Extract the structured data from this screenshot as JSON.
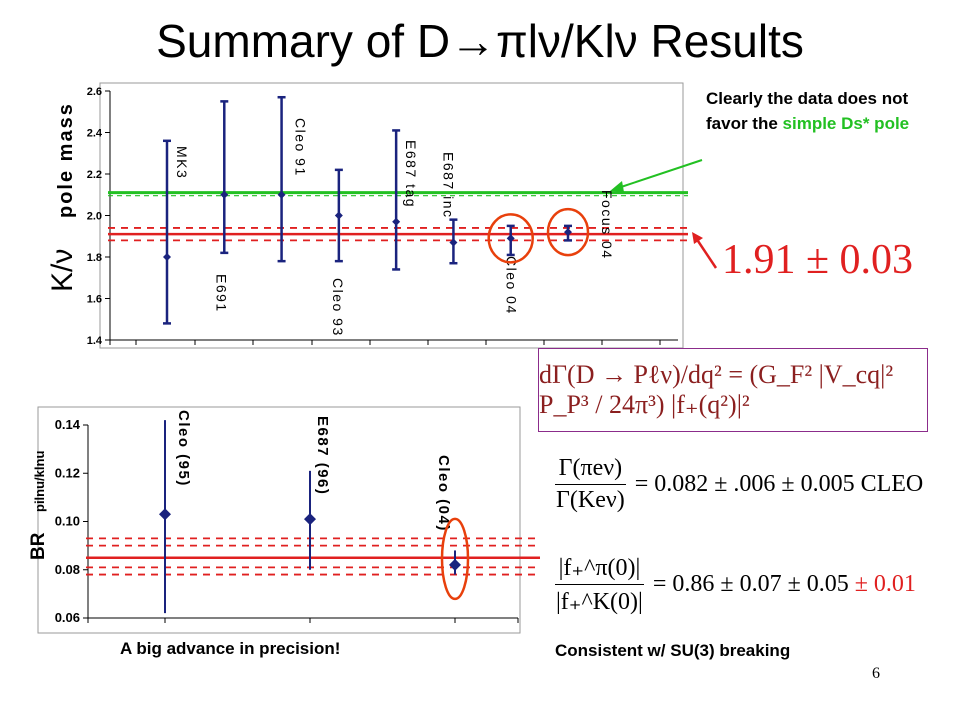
{
  "slide": {
    "title": "Summary of D→πlν/Klν Results",
    "note_prefix": "Clearly the data does not favor the",
    "note_green": "simple Ds* pole",
    "pole_value": "1.91 ± 0.03",
    "formula_text": "dΓ(D → Pℓν)/dq² = (G_F² |V_cq|² P_P³ / 24π³) |f₊(q²)|²",
    "eq1_num": "Γ(πeν)",
    "eq1_den": "Γ(Keν)",
    "eq1_rhs": "= 0.082 ± .006 ± 0.005 CLEO",
    "eq2_num": "|f₊^π(0)|",
    "eq2_den": "|f₊^K(0)|",
    "eq2_rhs": "= 0.86 ± 0.07 ± 0.05",
    "eq2_red": "± 0.01",
    "bottom_left_caption": "A big advance in precision!",
    "bottom_right_caption": "Consistent w/ SU(3) breaking",
    "page_number": "6",
    "colors": {
      "accent_red": "#e02020",
      "accent_green": "#22c022",
      "series_blue": "#1a237e"
    }
  },
  "chart_data": [
    {
      "type": "scatter",
      "ylabel_main": "K/ν",
      "ylabel_sub": "pole mass",
      "ylim": [
        1.4,
        2.6
      ],
      "yticks": [
        "1.4",
        "1.6",
        "1.8",
        "2.0",
        "2.2",
        "2.4",
        "2.6"
      ],
      "points": [
        {
          "label": "MK3",
          "y": 1.8,
          "lo": 1.48,
          "hi": 2.36
        },
        {
          "label": "E691",
          "y": 2.1,
          "lo": 1.82,
          "hi": 2.55
        },
        {
          "label": "Cleo 91",
          "y": 2.1,
          "lo": 1.78,
          "hi": 2.57
        },
        {
          "label": "Cleo 93",
          "y": 2.0,
          "lo": 1.78,
          "hi": 2.22
        },
        {
          "label": "E687 tag",
          "y": 1.97,
          "lo": 1.74,
          "hi": 2.41
        },
        {
          "label": "E687 inc",
          "y": 1.87,
          "lo": 1.77,
          "hi": 1.98
        },
        {
          "label": "Cleo 04",
          "y": 1.89,
          "lo": 1.81,
          "hi": 1.95
        },
        {
          "label": "Focus 04",
          "y": 1.92,
          "lo": 1.88,
          "hi": 1.95
        }
      ],
      "hlines": {
        "green": 2.11,
        "red": 1.91,
        "red_band": [
          1.88,
          1.94
        ]
      },
      "grid": false
    },
    {
      "type": "scatter",
      "ylabel_main": "BR",
      "ylabel_sub": "pilnu/klnu",
      "ylim": [
        0.06,
        0.14
      ],
      "yticks": [
        "0.06",
        "0.08",
        "0.10",
        "0.12",
        "0.14"
      ],
      "points": [
        {
          "label": "Cleo (95)",
          "y": 0.103,
          "lo": 0.062,
          "hi": 0.142
        },
        {
          "label": "E687 (96)",
          "y": 0.101,
          "lo": 0.08,
          "hi": 0.121
        },
        {
          "label": "Cleo (04)",
          "y": 0.082,
          "lo": 0.078,
          "hi": 0.088
        }
      ],
      "hlines": {
        "red": 0.085,
        "red_band_inner": [
          0.081,
          0.09
        ],
        "red_band_outer": [
          0.078,
          0.093
        ]
      },
      "grid": false
    }
  ]
}
